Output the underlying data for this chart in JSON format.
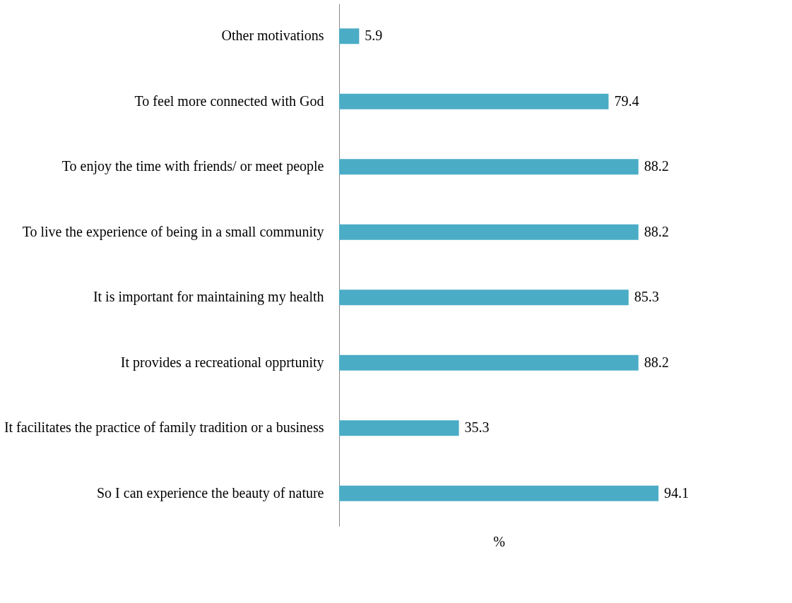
{
  "chart_data": {
    "type": "bar",
    "orientation": "horizontal",
    "xlabel": "%",
    "categories": [
      "Other motivations",
      "To feel more connected with God",
      "To enjoy the time with friends/ or meet people",
      "To live the experience of being in a small community",
      "It is important for maintaining my health",
      "It provides a recreational opprtunity",
      "It facilitates the practice of family tradition or a business",
      "So I can experience the beauty of nature"
    ],
    "values": [
      5.9,
      79.4,
      88.2,
      88.2,
      85.3,
      88.2,
      35.3,
      94.1
    ],
    "color": "#4bacc6",
    "data_labels": true,
    "tick_labels": "y"
  }
}
